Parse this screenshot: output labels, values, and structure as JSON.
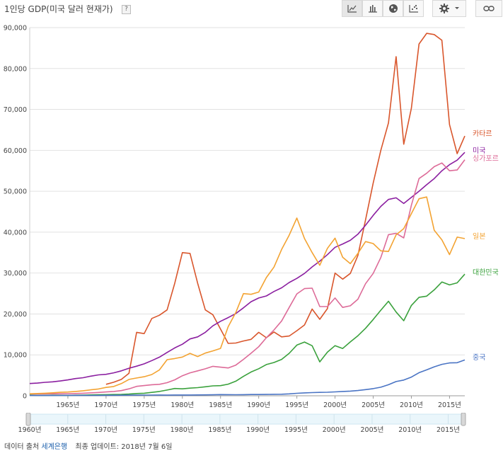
{
  "header": {
    "title": "1인당 GDP(미국 달러 현재가)",
    "help_label": "?"
  },
  "toolbar": {
    "buttons": [
      {
        "name": "line-chart-icon",
        "active": true
      },
      {
        "name": "bar-chart-icon",
        "active": false
      },
      {
        "name": "globe-icon",
        "active": false
      },
      {
        "name": "scatter-chart-icon",
        "active": false
      }
    ],
    "settings_icon": "gear-icon",
    "dropdown_icon": "chevron-down-icon",
    "link_icon": "link-icon"
  },
  "footer": {
    "source_prefix": "데이터 출처",
    "source_link": "세계은행",
    "updated": "최종 업데이트: 2018년 7월 6일"
  },
  "colors": {
    "카타르": "#d9562c",
    "미국": "#8b1fa0",
    "싱가포르": "#dd6b98",
    "일본": "#f3a332",
    "대한민국": "#3aa13c",
    "중국": "#4a74c4"
  },
  "chart_data": {
    "type": "line",
    "title": "1인당 GDP(미국 달러 현재가)",
    "xlabel": "",
    "ylabel": "",
    "xlim": [
      1960,
      2017
    ],
    "ylim": [
      0,
      90000
    ],
    "grid": true,
    "legend": "line-end labels",
    "y_ticks": [
      0,
      10000,
      20000,
      30000,
      40000,
      50000,
      60000,
      70000,
      80000,
      90000
    ],
    "y_tick_labels": [
      "0",
      "10,000",
      "20,000",
      "30,000",
      "40,000",
      "50,000",
      "60,000",
      "70,000",
      "80,000",
      "90,000"
    ],
    "x_ticks": [
      1965,
      1970,
      1975,
      1980,
      1985,
      1990,
      1995,
      2000,
      2005,
      2010,
      2015
    ],
    "x_tick_labels": [
      "1965년",
      "1970년",
      "1975년",
      "1980년",
      "1985년",
      "1990년",
      "1995년",
      "2000년",
      "2005년",
      "2010년",
      "2015년"
    ],
    "range_start_label": "1960년",
    "series": [
      {
        "name": "카타르",
        "x": [
          1970,
          1971,
          1972,
          1973,
          1974,
          1975,
          1976,
          1977,
          1978,
          1979,
          1980,
          1981,
          1982,
          1983,
          1984,
          1985,
          1986,
          1987,
          1988,
          1989,
          1990,
          1991,
          1992,
          1993,
          1994,
          1995,
          1996,
          1997,
          1998,
          1999,
          2000,
          2001,
          2002,
          2003,
          2004,
          2005,
          2006,
          2007,
          2008,
          2009,
          2010,
          2011,
          2012,
          2013,
          2014,
          2015,
          2016,
          2017
        ],
        "y": [
          2800,
          3300,
          4000,
          5500,
          15500,
          15200,
          18900,
          19700,
          21000,
          27500,
          35000,
          34800,
          27500,
          21000,
          19800,
          16300,
          12800,
          12900,
          13400,
          13800,
          15500,
          14200,
          15600,
          14400,
          14600,
          15900,
          17300,
          21200,
          18700,
          21300,
          30000,
          28500,
          29900,
          34300,
          43000,
          52000,
          60000,
          66700,
          82900,
          61500,
          70300,
          86000,
          88600,
          88300,
          86900,
          66300,
          59200,
          63500
        ]
      },
      {
        "name": "미국",
        "x": [
          1960,
          1961,
          1962,
          1963,
          1964,
          1965,
          1966,
          1967,
          1968,
          1969,
          1970,
          1971,
          1972,
          1973,
          1974,
          1975,
          1976,
          1977,
          1978,
          1979,
          1980,
          1981,
          1982,
          1983,
          1984,
          1985,
          1986,
          1987,
          1988,
          1989,
          1990,
          1991,
          1992,
          1993,
          1994,
          1995,
          1996,
          1997,
          1998,
          1999,
          2000,
          2001,
          2002,
          2003,
          2004,
          2005,
          2006,
          2007,
          2008,
          2009,
          2010,
          2011,
          2012,
          2013,
          2014,
          2015,
          2016,
          2017
        ],
        "y": [
          3000,
          3100,
          3280,
          3410,
          3620,
          3870,
          4200,
          4420,
          4800,
          5100,
          5250,
          5600,
          6100,
          6730,
          7230,
          7800,
          8600,
          9450,
          10600,
          11700,
          12600,
          13900,
          14400,
          15500,
          17100,
          18200,
          19100,
          20100,
          21500,
          23000,
          23900,
          24400,
          25500,
          26400,
          27700,
          28700,
          29900,
          31500,
          32900,
          34500,
          36300,
          37100,
          38000,
          39500,
          41700,
          44100,
          46300,
          48000,
          48400,
          47000,
          48500,
          50000,
          51600,
          53100,
          55000,
          56500,
          57600,
          59500
        ]
      },
      {
        "name": "싱가포르",
        "x": [
          1960,
          1961,
          1962,
          1963,
          1964,
          1965,
          1966,
          1967,
          1968,
          1969,
          1970,
          1971,
          1972,
          1973,
          1974,
          1975,
          1976,
          1977,
          1978,
          1979,
          1980,
          1981,
          1982,
          1983,
          1984,
          1985,
          1986,
          1987,
          1988,
          1989,
          1990,
          1991,
          1992,
          1993,
          1994,
          1995,
          1996,
          1997,
          1998,
          1999,
          2000,
          2001,
          2002,
          2003,
          2004,
          2005,
          2006,
          2007,
          2008,
          2009,
          2010,
          2011,
          2012,
          2013,
          2014,
          2015,
          2016,
          2017
        ],
        "y": [
          430,
          450,
          470,
          510,
          490,
          520,
          560,
          620,
          710,
          820,
          930,
          1060,
          1270,
          1700,
          2300,
          2500,
          2700,
          2800,
          3200,
          3900,
          4900,
          5600,
          6100,
          6600,
          7200,
          7000,
          6800,
          7500,
          8900,
          10400,
          12000,
          14200,
          16100,
          18300,
          21600,
          24900,
          26200,
          26300,
          21800,
          21800,
          23900,
          21600,
          22000,
          23600,
          27400,
          29900,
          33800,
          39400,
          39700,
          38600,
          46600,
          53100,
          54400,
          56000,
          56900,
          55000,
          55200,
          57700
        ]
      },
      {
        "name": "일본",
        "x": [
          1960,
          1961,
          1962,
          1963,
          1964,
          1965,
          1966,
          1967,
          1968,
          1969,
          1970,
          1971,
          1972,
          1973,
          1974,
          1975,
          1976,
          1977,
          1978,
          1979,
          1980,
          1981,
          1982,
          1983,
          1984,
          1985,
          1986,
          1987,
          1988,
          1989,
          1990,
          1991,
          1992,
          1993,
          1994,
          1995,
          1996,
          1997,
          1998,
          1999,
          2000,
          2001,
          2002,
          2003,
          2004,
          2005,
          2006,
          2007,
          2008,
          2009,
          2010,
          2011,
          2012,
          2013,
          2014,
          2015,
          2016,
          2017
        ],
        "y": [
          480,
          560,
          630,
          720,
          840,
          920,
          1060,
          1230,
          1450,
          1670,
          2040,
          2270,
          2970,
          3990,
          4350,
          4660,
          5200,
          6330,
          8820,
          9100,
          9460,
          10360,
          9580,
          10430,
          10980,
          11580,
          16880,
          20350,
          24970,
          24810,
          25360,
          28900,
          31460,
          35770,
          39270,
          43440,
          38440,
          35020,
          31900,
          36030,
          38530,
          33850,
          32290,
          34810,
          37690,
          37220,
          35430,
          35280,
          39340,
          40860,
          44510,
          48170,
          48600,
          40450,
          38110,
          34520,
          38790,
          38430
        ]
      },
      {
        "name": "대한민국",
        "x": [
          1960,
          1961,
          1962,
          1963,
          1964,
          1965,
          1966,
          1967,
          1968,
          1969,
          1970,
          1971,
          1972,
          1973,
          1974,
          1975,
          1976,
          1977,
          1978,
          1979,
          1980,
          1981,
          1982,
          1983,
          1984,
          1985,
          1986,
          1987,
          1988,
          1989,
          1990,
          1991,
          1992,
          1993,
          1994,
          1995,
          1996,
          1997,
          1998,
          1999,
          2000,
          2001,
          2002,
          2003,
          2004,
          2005,
          2006,
          2007,
          2008,
          2009,
          2010,
          2011,
          2012,
          2013,
          2014,
          2015,
          2016,
          2017
        ],
        "y": [
          160,
          95,
          105,
          145,
          125,
          110,
          135,
          165,
          200,
          245,
          280,
          305,
          325,
          410,
          560,
          620,
          830,
          1050,
          1400,
          1780,
          1700,
          1870,
          1990,
          2200,
          2420,
          2480,
          2830,
          3560,
          4750,
          5820,
          6610,
          7640,
          8130,
          8890,
          10390,
          12400,
          13140,
          12240,
          8290,
          10670,
          12260,
          11560,
          13170,
          14670,
          16500,
          18640,
          20920,
          23100,
          20480,
          18340,
          22090,
          24080,
          24360,
          25890,
          27810,
          27110,
          27610,
          29740
        ]
      },
      {
        "name": "중국",
        "x": [
          1960,
          1961,
          1962,
          1963,
          1964,
          1965,
          1966,
          1967,
          1968,
          1969,
          1970,
          1971,
          1972,
          1973,
          1974,
          1975,
          1976,
          1977,
          1978,
          1979,
          1980,
          1981,
          1982,
          1983,
          1984,
          1985,
          1986,
          1987,
          1988,
          1989,
          1990,
          1991,
          1992,
          1993,
          1994,
          1995,
          1996,
          1997,
          1998,
          1999,
          2000,
          2001,
          2002,
          2003,
          2004,
          2005,
          2006,
          2007,
          2008,
          2009,
          2010,
          2011,
          2012,
          2013,
          2014,
          2015,
          2016,
          2017
        ],
        "y": [
          90,
          76,
          70,
          74,
          85,
          98,
          104,
          97,
          91,
          100,
          113,
          119,
          132,
          157,
          160,
          178,
          165,
          185,
          156,
          183,
          195,
          197,
          203,
          225,
          250,
          294,
          281,
          251,
          284,
          311,
          318,
          333,
          366,
          377,
          473,
          610,
          709,
          781,
          828,
          873,
          959,
          1053,
          1149,
          1289,
          1509,
          1753,
          2099,
          2695,
          3471,
          3838,
          4561,
          5634,
          6338,
          7078,
          7684,
          8028,
          8079,
          8760
        ]
      }
    ]
  }
}
